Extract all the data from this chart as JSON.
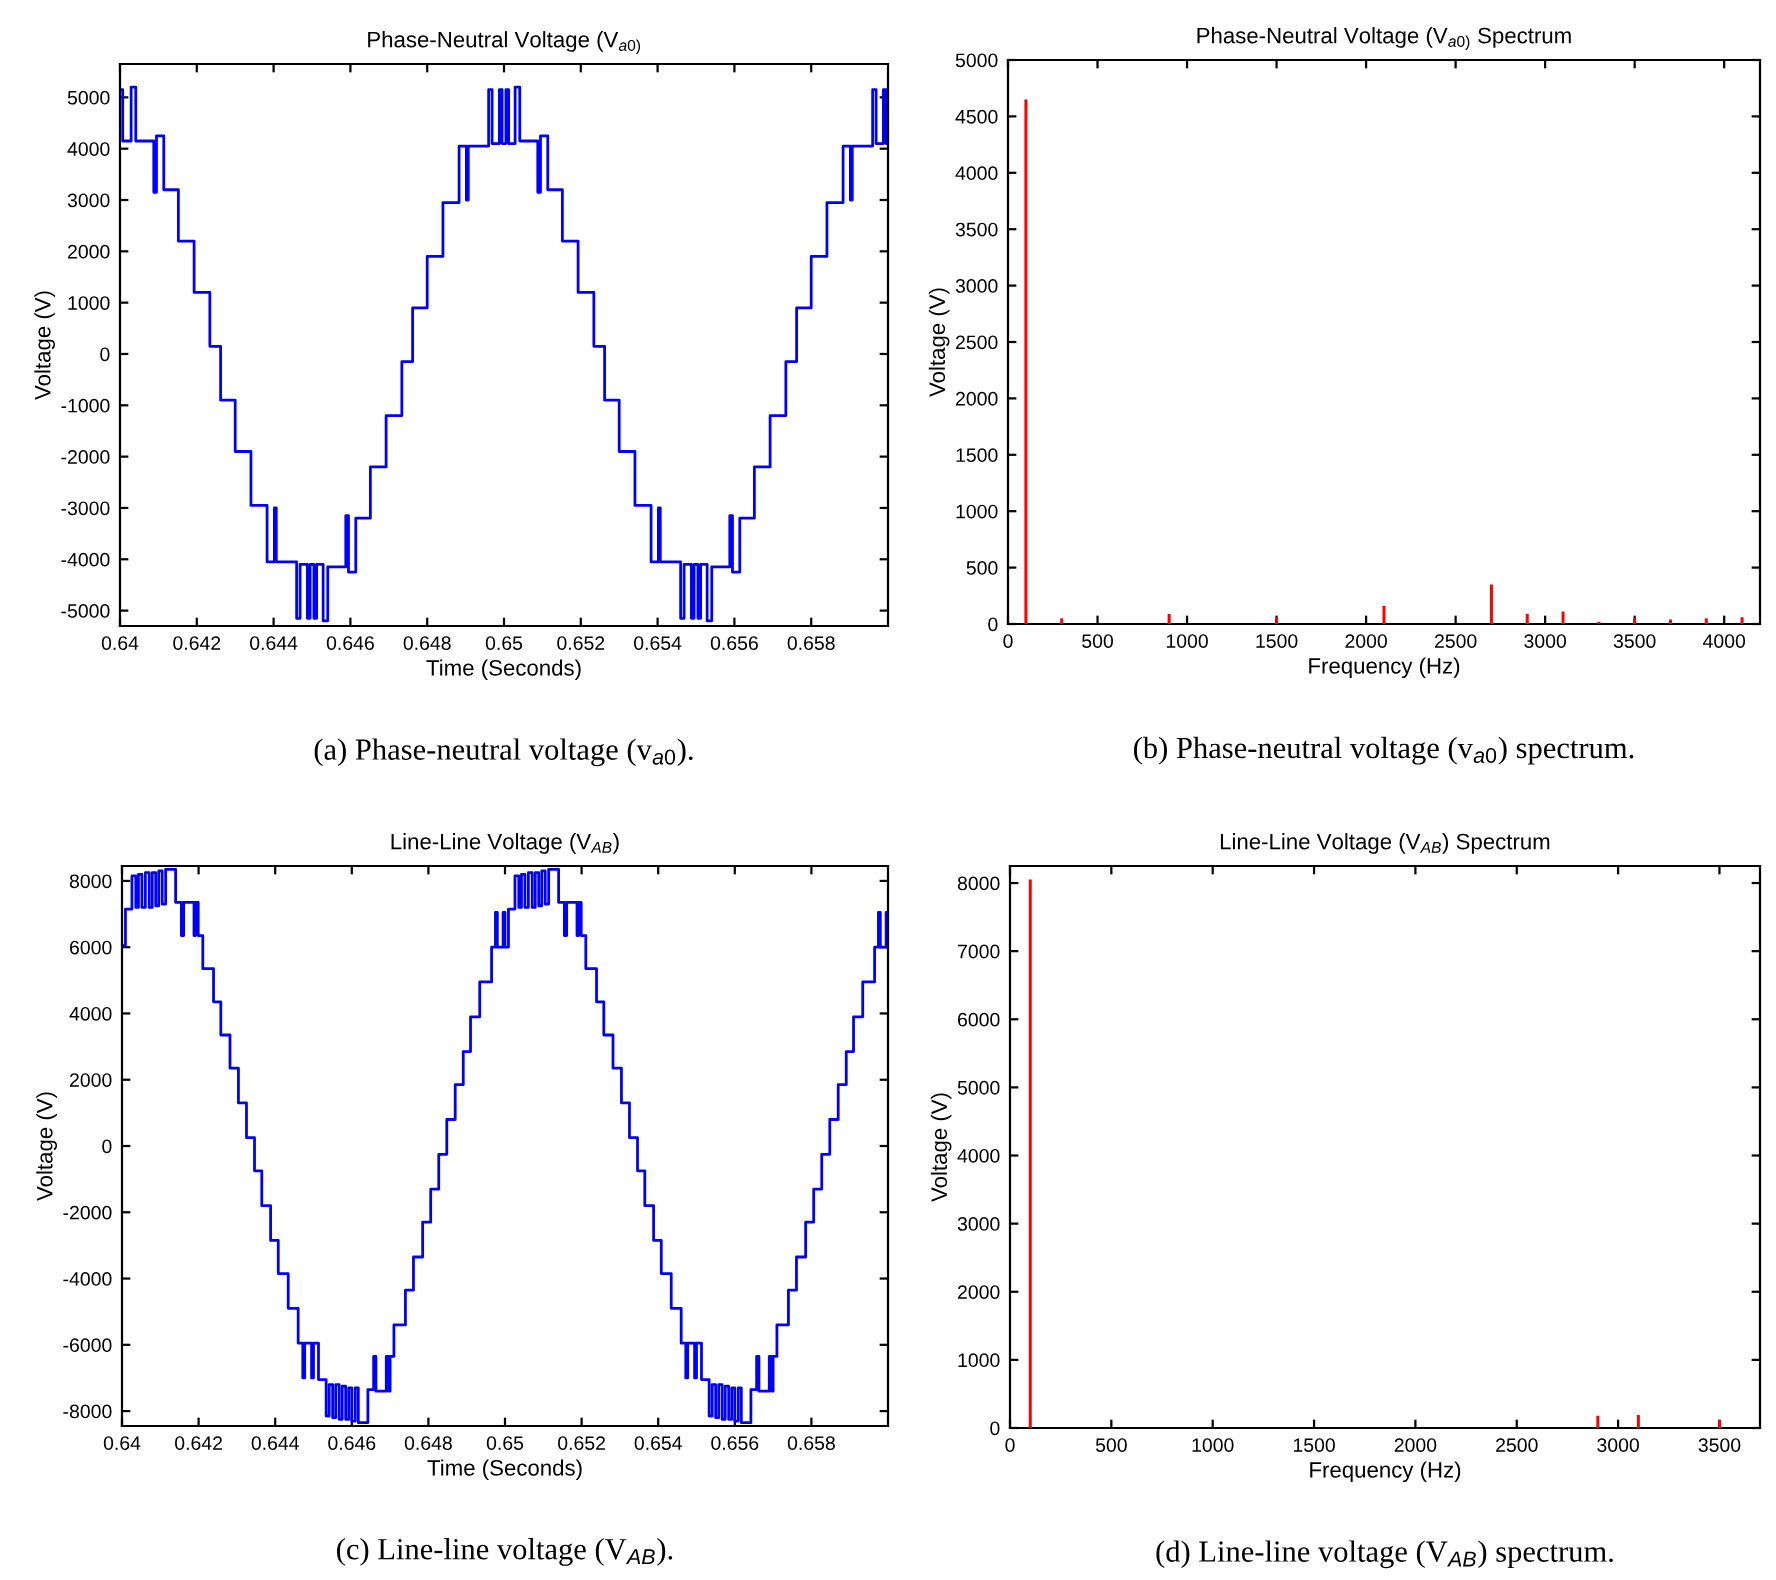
{
  "chart_data": [
    {
      "type": "step",
      "title": "Phase-Neutral Voltage (V$_{a0)}$",
      "xlabel": "Time (Seconds)",
      "ylabel": "Voltage (V)",
      "color": "#0000ff",
      "x": [
        0.64,
        0.64007,
        0.64029,
        0.64041,
        0.64088,
        0.64095,
        0.64114,
        0.64152,
        0.64193,
        0.64234,
        0.64262,
        0.643,
        0.64341,
        0.64383,
        0.64402,
        0.64407,
        0.6446,
        0.64469,
        0.64488,
        0.64495,
        0.64505,
        0.64512,
        0.64529,
        0.64541,
        0.64588,
        0.64595,
        0.64614,
        0.64652,
        0.64693,
        0.64734,
        0.64762,
        0.648,
        0.64841,
        0.64883,
        0.64902,
        0.64907,
        0.6496,
        0.64969,
        0.64988,
        0.64995,
        0.65005,
        0.65012,
        0.65029,
        0.65041,
        0.65088,
        0.65095,
        0.65114,
        0.65152,
        0.65193,
        0.65234,
        0.65262,
        0.653,
        0.65341,
        0.65383,
        0.65402,
        0.65407,
        0.6546,
        0.65469,
        0.65488,
        0.65495,
        0.65505,
        0.65512,
        0.65529,
        0.65541,
        0.65588,
        0.65595,
        0.65614,
        0.65652,
        0.65693,
        0.65734,
        0.65762,
        0.658,
        0.65841,
        0.65883,
        0.65902,
        0.65907,
        0.6596,
        0.65969,
        0.65988,
        0.65995,
        0.66
      ],
      "values": [
        5150,
        4150,
        5200,
        4150,
        3150,
        4250,
        3200,
        2200,
        1200,
        150,
        -900,
        -1900,
        -2950,
        -4050,
        -3000,
        -4050,
        -5150,
        -4100,
        -5150,
        -4100,
        -5150,
        -4100,
        -5200,
        -4150,
        -3150,
        -4250,
        -3200,
        -2200,
        -1200,
        -150,
        900,
        1900,
        2950,
        4050,
        3000,
        4050,
        5150,
        4100,
        5150,
        4100,
        5150,
        4100,
        5200,
        4150,
        3150,
        4250,
        3200,
        2200,
        1200,
        150,
        -900,
        -1900,
        -2950,
        -4050,
        -3000,
        -4050,
        -5150,
        -4100,
        -5150,
        -4100,
        -5150,
        -4100,
        -5200,
        -4150,
        -3150,
        -4250,
        -3200,
        -2200,
        -1200,
        -150,
        900,
        1900,
        2950,
        4050,
        3000,
        4050,
        5150,
        4100,
        5150,
        4100,
        4100
      ],
      "xlim": [
        0.64,
        0.66
      ],
      "ylim": [
        -5300,
        5650
      ],
      "xticks": [
        0.64,
        0.642,
        0.644,
        0.646,
        0.648,
        0.65,
        0.652,
        0.654,
        0.656,
        0.658
      ],
      "yticks": [
        -5000,
        -4000,
        -3000,
        -2000,
        -1000,
        0,
        1000,
        2000,
        3000,
        4000,
        5000
      ],
      "annotations": [
        "(a) Phase-neutral voltage (v$_{a0}$)."
      ]
    },
    {
      "type": "bar",
      "title": "Phase-Neutral Voltage (V$_{a0)}$ Spectrum",
      "xlabel": "Frequency (Hz)",
      "ylabel": "Voltage (V)",
      "color": "#ff0000",
      "x": [
        100,
        300,
        900,
        1500,
        2100,
        2700,
        2900,
        3100,
        3300,
        3500,
        3700,
        3900,
        4100
      ],
      "values": [
        4650,
        50,
        90,
        60,
        160,
        350,
        90,
        110,
        20,
        50,
        40,
        50,
        60
      ],
      "xlim": [
        0,
        4200
      ],
      "ylim": [
        0,
        5000
      ],
      "xticks": [
        0,
        500,
        1000,
        1500,
        2000,
        2500,
        3000,
        3500,
        4000
      ],
      "yticks": [
        0,
        500,
        1000,
        1500,
        2000,
        2500,
        3000,
        3500,
        4000,
        4500,
        5000
      ],
      "annotations": [
        "(b) Phase-neutral voltage (v$_{a0}$) spectrum."
      ]
    },
    {
      "type": "step",
      "title": "Line-Line Voltage (V$_{AB}$)",
      "xlabel": "Time (Seconds)",
      "ylabel": "Voltage (V)",
      "color": "#0000ff",
      "x": [
        0.64,
        0.64009,
        0.64026,
        0.64036,
        0.64043,
        0.64052,
        0.64061,
        0.64071,
        0.64079,
        0.64088,
        0.64096,
        0.64105,
        0.64114,
        0.6414,
        0.64155,
        0.64161,
        0.64188,
        0.64192,
        0.64199,
        0.64211,
        0.64239,
        0.64258,
        0.64282,
        0.64304,
        0.64325,
        0.64346,
        0.64365,
        0.64388,
        0.64408,
        0.64434,
        0.6446,
        0.64472,
        0.64477,
        0.64495,
        0.645,
        0.64513,
        0.64533,
        0.64541,
        0.6455,
        0.64558,
        0.64567,
        0.64575,
        0.64584,
        0.64592,
        0.646,
        0.64609,
        0.64617,
        0.64642,
        0.64657,
        0.64663,
        0.6469,
        0.64696,
        0.647,
        0.6471,
        0.6474,
        0.64761,
        0.64785,
        0.64806,
        0.64827,
        0.64848,
        0.6487,
        0.64891,
        0.6491,
        0.64934,
        0.64965,
        0.64975,
        0.6498,
        0.64995,
        0.65,
        0.65009,
        0.65026,
        0.65036,
        0.65043,
        0.65052,
        0.65061,
        0.65071,
        0.65079,
        0.65088,
        0.65096,
        0.65105,
        0.65114,
        0.6514,
        0.65155,
        0.65161,
        0.65188,
        0.65192,
        0.65199,
        0.65211,
        0.65239,
        0.65258,
        0.65282,
        0.65304,
        0.65325,
        0.65346,
        0.65365,
        0.65388,
        0.65408,
        0.65434,
        0.6546,
        0.65472,
        0.65477,
        0.65495,
        0.655,
        0.65513,
        0.65533,
        0.65541,
        0.6555,
        0.65558,
        0.65567,
        0.65575,
        0.65584,
        0.65592,
        0.656,
        0.65609,
        0.65617,
        0.65642,
        0.65657,
        0.65663,
        0.6569,
        0.65696,
        0.657,
        0.6571,
        0.6574,
        0.65761,
        0.65785,
        0.65806,
        0.65827,
        0.65848,
        0.6587,
        0.65891,
        0.6591,
        0.65934,
        0.65965,
        0.65975,
        0.6598,
        0.65995,
        0.66
      ],
      "values": [
        6050,
        7150,
        8150,
        7200,
        8200,
        7200,
        8250,
        7200,
        8250,
        7250,
        8300,
        7300,
        8350,
        7350,
        6350,
        7350,
        6350,
        7350,
        6350,
        5350,
        4350,
        3350,
        2350,
        1300,
        250,
        -750,
        -1800,
        -2850,
        -3850,
        -4900,
        -5950,
        -7000,
        -5950,
        -7000,
        -5950,
        -7050,
        -8150,
        -7200,
        -8200,
        -7200,
        -8250,
        -7250,
        -8250,
        -7300,
        -8300,
        -7300,
        -8350,
        -7350,
        -6350,
        -7400,
        -6350,
        -7400,
        -6350,
        -5400,
        -4350,
        -3350,
        -2300,
        -1300,
        -250,
        800,
        1850,
        2850,
        3900,
        4950,
        6000,
        7050,
        6000,
        7050,
        6000,
        7150,
        8150,
        7200,
        8200,
        7200,
        8250,
        7200,
        8250,
        7250,
        8300,
        7300,
        8350,
        7350,
        6350,
        7350,
        6350,
        7350,
        6350,
        5350,
        4350,
        3350,
        2350,
        1300,
        250,
        -750,
        -1800,
        -2850,
        -3850,
        -4900,
        -5950,
        -7000,
        -5950,
        -7000,
        -5950,
        -7050,
        -8150,
        -7200,
        -8200,
        -7200,
        -8250,
        -7250,
        -8250,
        -7300,
        -8300,
        -7300,
        -8350,
        -7350,
        -6350,
        -7400,
        -6350,
        -7400,
        -6350,
        -5400,
        -4350,
        -3350,
        -2300,
        -1300,
        -250,
        800,
        1850,
        2850,
        3900,
        4950,
        6000,
        7050,
        6000,
        7050,
        6000
      ],
      "xlim": [
        0.64,
        0.66
      ],
      "ylim": [
        -8450,
        8450
      ],
      "xticks": [
        0.64,
        0.642,
        0.644,
        0.646,
        0.648,
        0.65,
        0.652,
        0.654,
        0.656,
        0.658
      ],
      "yticks": [
        -8000,
        -6000,
        -4000,
        -2000,
        0,
        2000,
        4000,
        6000,
        8000
      ],
      "annotations": [
        "(c) Line-line voltage (V$_{AB}$)."
      ]
    },
    {
      "type": "bar",
      "title": "Line-Line Voltage (V$_{AB}$) Spectrum",
      "xlabel": "Frequency (Hz)",
      "ylabel": "Voltage (V)",
      "color": "#ff0000",
      "x": [
        100,
        2900,
        3100,
        3500
      ],
      "values": [
        8050,
        180,
        190,
        120
      ],
      "xlim": [
        0,
        3700
      ],
      "ylim": [
        0,
        8250
      ],
      "xticks": [
        0,
        500,
        1000,
        1500,
        2000,
        2500,
        3000,
        3500
      ],
      "yticks": [
        0,
        1000,
        2000,
        3000,
        4000,
        5000,
        6000,
        7000,
        8000
      ],
      "annotations": [
        "(d) Line-line voltage (V$_{AB}$) spectrum."
      ]
    }
  ]
}
